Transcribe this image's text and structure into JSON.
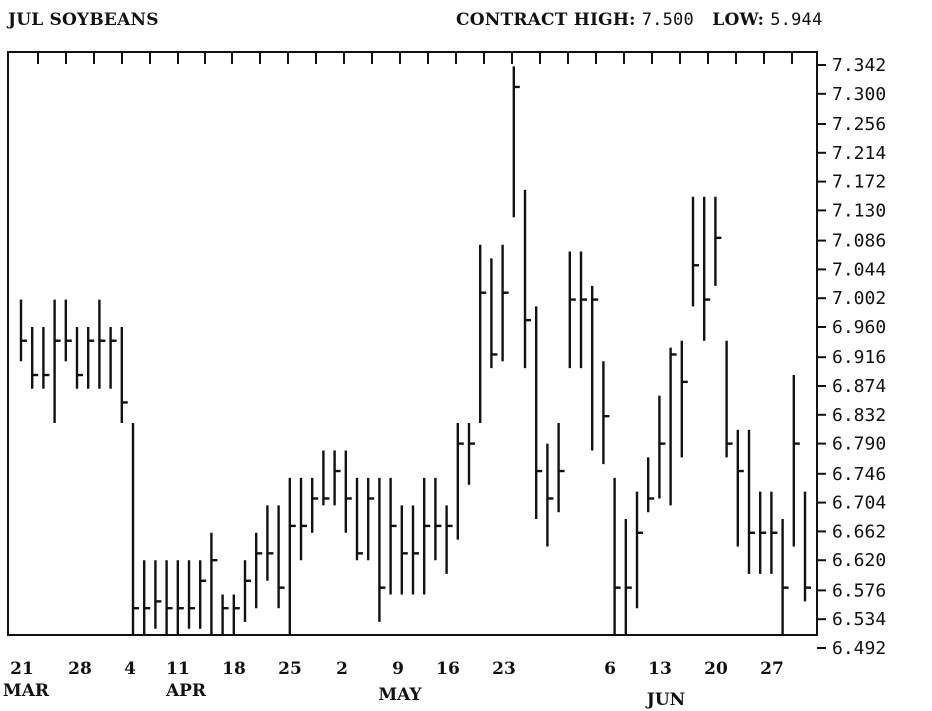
{
  "header": {
    "title": "JUL SOYBEANS",
    "contract_high_label": "CONTRACT HIGH:",
    "contract_high_value": "7.500",
    "contract_low_label": "LOW:",
    "contract_low_value": "5.944"
  },
  "chart_data": {
    "type": "ohlc",
    "title": "JUL SOYBEANS",
    "y_axis_position": "right",
    "ylim": [
      6.492,
      7.342
    ],
    "y_ticks": [
      "7.342",
      "7.300",
      "7.256",
      "7.214",
      "7.172",
      "7.130",
      "7.086",
      "7.044",
      "7.002",
      "6.960",
      "6.916",
      "6.874",
      "6.832",
      "6.790",
      "6.746",
      "6.704",
      "6.662",
      "6.620",
      "6.576",
      "6.534",
      "6.492"
    ],
    "x_tick_labels": [
      "21",
      "28",
      "4",
      "11",
      "18",
      "25",
      "2",
      "9",
      "16",
      "23",
      "6",
      "13",
      "20",
      "27"
    ],
    "month_labels": [
      "MAR",
      "APR",
      "MAY",
      "JUN"
    ],
    "bars": [
      {
        "date": "Mar 21",
        "high": 7.0,
        "low": 6.91,
        "close": 6.94
      },
      {
        "date": "Mar 22",
        "high": 6.96,
        "low": 6.87,
        "close": 6.89
      },
      {
        "date": "Mar 23",
        "high": 6.96,
        "low": 6.87,
        "close": 6.89
      },
      {
        "date": "Mar 24",
        "high": 7.0,
        "low": 6.82,
        "close": 6.94
      },
      {
        "date": "Mar 25",
        "high": 7.0,
        "low": 6.91,
        "close": 6.94
      },
      {
        "date": "Mar 28",
        "high": 6.96,
        "low": 6.87,
        "close": 6.89
      },
      {
        "date": "Mar 29",
        "high": 6.96,
        "low": 6.87,
        "close": 6.94
      },
      {
        "date": "Mar 30",
        "high": 7.0,
        "low": 6.87,
        "close": 6.94
      },
      {
        "date": "Mar 31",
        "high": 6.96,
        "low": 6.87,
        "close": 6.94
      },
      {
        "date": "Apr 1",
        "high": 6.96,
        "low": 6.82,
        "close": 6.85
      },
      {
        "date": "Apr 4",
        "high": 6.82,
        "low": 6.492,
        "close": 6.55
      },
      {
        "date": "Apr 5",
        "high": 6.62,
        "low": 6.48,
        "close": 6.55
      },
      {
        "date": "Apr 6",
        "high": 6.62,
        "low": 6.52,
        "close": 6.56
      },
      {
        "date": "Apr 7",
        "high": 6.62,
        "low": 6.48,
        "close": 6.55
      },
      {
        "date": "Apr 8",
        "high": 6.62,
        "low": 6.48,
        "close": 6.55
      },
      {
        "date": "Apr 11",
        "high": 6.62,
        "low": 6.52,
        "close": 6.55
      },
      {
        "date": "Apr 12",
        "high": 6.62,
        "low": 6.52,
        "close": 6.59
      },
      {
        "date": "Apr 13",
        "high": 6.66,
        "low": 6.492,
        "close": 6.62
      },
      {
        "date": "Apr 14",
        "high": 6.57,
        "low": 6.492,
        "close": 6.55
      },
      {
        "date": "Apr 15",
        "high": 6.57,
        "low": 6.48,
        "close": 6.55
      },
      {
        "date": "Apr 18",
        "high": 6.62,
        "low": 6.53,
        "close": 6.59
      },
      {
        "date": "Apr 19",
        "high": 6.66,
        "low": 6.55,
        "close": 6.63
      },
      {
        "date": "Apr 20",
        "high": 6.7,
        "low": 6.59,
        "close": 6.63
      },
      {
        "date": "Apr 21",
        "high": 6.7,
        "low": 6.55,
        "close": 6.58
      },
      {
        "date": "Apr 22",
        "high": 6.74,
        "low": 6.492,
        "close": 6.67
      },
      {
        "date": "Apr 25",
        "high": 6.74,
        "low": 6.62,
        "close": 6.67
      },
      {
        "date": "Apr 26",
        "high": 6.74,
        "low": 6.66,
        "close": 6.71
      },
      {
        "date": "Apr 27",
        "high": 6.78,
        "low": 6.7,
        "close": 6.71
      },
      {
        "date": "Apr 28",
        "high": 6.78,
        "low": 6.7,
        "close": 6.75
      },
      {
        "date": "Apr 29",
        "high": 6.78,
        "low": 6.66,
        "close": 6.71
      },
      {
        "date": "May 2",
        "high": 6.74,
        "low": 6.62,
        "close": 6.63
      },
      {
        "date": "May 3",
        "high": 6.74,
        "low": 6.62,
        "close": 6.71
      },
      {
        "date": "May 4",
        "high": 6.74,
        "low": 6.53,
        "close": 6.58
      },
      {
        "date": "May 5",
        "high": 6.74,
        "low": 6.57,
        "close": 6.67
      },
      {
        "date": "May 6",
        "high": 6.7,
        "low": 6.57,
        "close": 6.63
      },
      {
        "date": "May 9",
        "high": 6.7,
        "low": 6.57,
        "close": 6.63
      },
      {
        "date": "May 10",
        "high": 6.74,
        "low": 6.57,
        "close": 6.67
      },
      {
        "date": "May 11",
        "high": 6.74,
        "low": 6.62,
        "close": 6.67
      },
      {
        "date": "May 12",
        "high": 6.7,
        "low": 6.6,
        "close": 6.67
      },
      {
        "date": "May 13",
        "high": 6.82,
        "low": 6.65,
        "close": 6.79
      },
      {
        "date": "May 16",
        "high": 6.82,
        "low": 6.73,
        "close": 6.79
      },
      {
        "date": "May 17",
        "high": 7.08,
        "low": 6.82,
        "close": 7.01
      },
      {
        "date": "May 18",
        "high": 7.06,
        "low": 6.9,
        "close": 6.92
      },
      {
        "date": "May 19",
        "high": 7.08,
        "low": 6.91,
        "close": 7.01
      },
      {
        "date": "May 20",
        "high": 7.34,
        "low": 7.12,
        "close": 7.31
      },
      {
        "date": "May 23",
        "high": 7.16,
        "low": 6.9,
        "close": 6.97
      },
      {
        "date": "May 24",
        "high": 6.99,
        "low": 6.68,
        "close": 6.75
      },
      {
        "date": "May 25",
        "high": 6.79,
        "low": 6.64,
        "close": 6.71
      },
      {
        "date": "May 26",
        "high": 6.82,
        "low": 6.69,
        "close": 6.75
      },
      {
        "date": "May 27",
        "high": 7.07,
        "low": 6.9,
        "close": 7.0
      },
      {
        "date": "May 30",
        "high": 7.07,
        "low": 6.9,
        "close": 7.0
      },
      {
        "date": "May 31",
        "high": 7.02,
        "low": 6.78,
        "close": 7.0
      },
      {
        "date": "Jun 1",
        "high": 6.91,
        "low": 6.76,
        "close": 6.83
      },
      {
        "date": "Jun 6",
        "high": 6.74,
        "low": 6.492,
        "close": 6.58
      },
      {
        "date": "Jun 7",
        "high": 6.68,
        "low": 6.51,
        "close": 6.58
      },
      {
        "date": "Jun 8",
        "high": 6.72,
        "low": 6.55,
        "close": 6.66
      },
      {
        "date": "Jun 9",
        "high": 6.77,
        "low": 6.69,
        "close": 6.71
      },
      {
        "date": "Jun 10",
        "high": 6.86,
        "low": 6.71,
        "close": 6.79
      },
      {
        "date": "Jun 13",
        "high": 6.93,
        "low": 6.7,
        "close": 6.92
      },
      {
        "date": "Jun 14",
        "high": 6.94,
        "low": 6.77,
        "close": 6.88
      },
      {
        "date": "Jun 15",
        "high": 7.15,
        "low": 6.99,
        "close": 7.05
      },
      {
        "date": "Jun 16",
        "high": 7.15,
        "low": 6.94,
        "close": 7.0
      },
      {
        "date": "Jun 17",
        "high": 7.15,
        "low": 7.02,
        "close": 7.09
      },
      {
        "date": "Jun 20",
        "high": 6.94,
        "low": 6.77,
        "close": 6.79
      },
      {
        "date": "Jun 21",
        "high": 6.81,
        "low": 6.64,
        "close": 6.75
      },
      {
        "date": "Jun 22",
        "high": 6.81,
        "low": 6.6,
        "close": 6.66
      },
      {
        "date": "Jun 23",
        "high": 6.72,
        "low": 6.6,
        "close": 6.66
      },
      {
        "date": "Jun 24",
        "high": 6.72,
        "low": 6.6,
        "close": 6.66
      },
      {
        "date": "Jun 27",
        "high": 6.68,
        "low": 6.492,
        "close": 6.58
      },
      {
        "date": "Jun 28",
        "high": 6.89,
        "low": 6.64,
        "close": 6.79
      },
      {
        "date": "Jun 29",
        "high": 6.72,
        "low": 6.56,
        "close": 6.58
      }
    ]
  }
}
